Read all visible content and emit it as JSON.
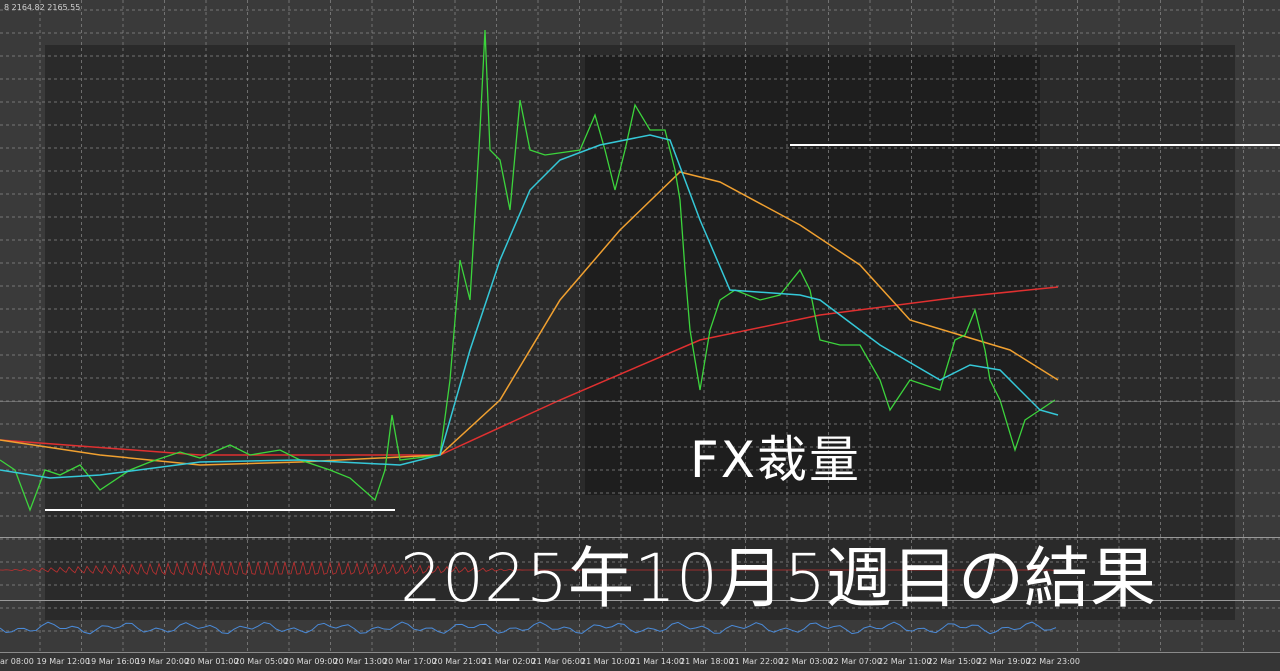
{
  "header": {
    "quote": "8 2164.82 2165.55"
  },
  "title": {
    "line1": "FX裁量",
    "line2": "2025年10月5週目の結果"
  },
  "time_axis": [
    "ar 08:00",
    "19 Mar 12:00",
    "19 Mar 16:00",
    "19 Mar 20:00",
    "20 Mar 01:00",
    "20 Mar 05:00",
    "20 Mar 09:00",
    "20 Mar 13:00",
    "20 Mar 17:00",
    "20 Mar 21:00",
    "21 Mar 02:00",
    "21 Mar 06:00",
    "21 Mar 10:00",
    "21 Mar 14:00",
    "21 Mar 18:00",
    "21 Mar 22:00",
    "22 Mar 03:00",
    "22 Mar 07:00",
    "22 Mar 11:00",
    "22 Mar 15:00",
    "22 Mar 19:00",
    "22 Mar 23:00"
  ],
  "colors": {
    "price": "#3cd43c",
    "ma_fast": "#35c8d8",
    "ma_mid": "#f0a030",
    "ma_slow": "#e03030",
    "indicator": "#4a8ad8"
  }
}
